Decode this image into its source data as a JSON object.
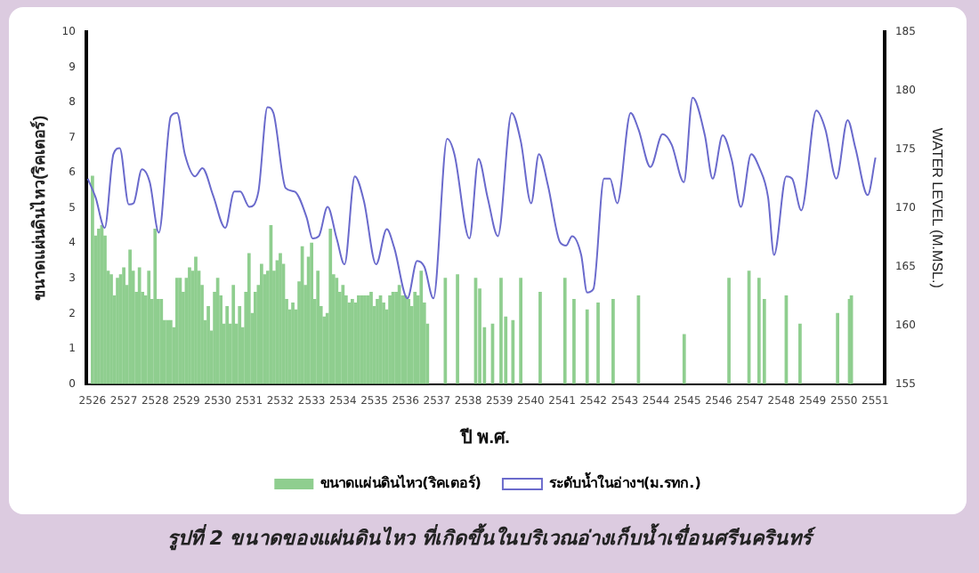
{
  "chart_data": {
    "type": "bar",
    "title": "รูปที่ 2  ขนาดของแผ่นดินไหว ที่เกิดขึ้นในบริเวณอ่างเก็บน้ำเขื่อนศรีนครินทร์",
    "xlabel": "ปี พ.ศ.",
    "ylabel": "ขนาดแผ่นดินไหว(ริคเตอร์)",
    "y2label": "WATER LEVEL (M.MSL.)",
    "xlim": [
      2525.8,
      2551.3
    ],
    "xticks": [
      2526,
      2527,
      2528,
      2529,
      2530,
      2531,
      2532,
      2533,
      2534,
      2535,
      2536,
      2537,
      2538,
      2539,
      2540,
      2541,
      2542,
      2543,
      2544,
      2545,
      2546,
      2547,
      2548,
      2549,
      2550,
      2551
    ],
    "ylim": [
      0,
      10
    ],
    "yticks": [
      0,
      1,
      2,
      3,
      4,
      5,
      6,
      7,
      8,
      9,
      10
    ],
    "y2lim": [
      155,
      185
    ],
    "y2ticks": [
      155,
      160,
      165,
      170,
      175,
      180,
      185
    ],
    "grid": false,
    "legend": "bottom",
    "series": [
      {
        "name": "ขนาดแผ่นดินไหว(ริคเตอร์)",
        "color": "#8fce8f",
        "x": [
          2526.0,
          2526.1,
          2526.2,
          2526.3,
          2526.4,
          2526.5,
          2526.6,
          2526.7,
          2526.8,
          2526.9,
          2527.0,
          2527.1,
          2527.2,
          2527.3,
          2527.4,
          2527.5,
          2527.6,
          2527.7,
          2527.8,
          2527.9,
          2528.0,
          2528.1,
          2528.2,
          2528.3,
          2528.4,
          2528.5,
          2528.6,
          2528.7,
          2528.8,
          2528.9,
          2529.0,
          2529.1,
          2529.2,
          2529.3,
          2529.4,
          2529.5,
          2529.6,
          2529.7,
          2529.8,
          2529.9,
          2530.0,
          2530.1,
          2530.2,
          2530.3,
          2530.4,
          2530.5,
          2530.6,
          2530.7,
          2530.8,
          2530.9,
          2531.0,
          2531.1,
          2531.2,
          2531.3,
          2531.4,
          2531.5,
          2531.6,
          2531.7,
          2531.8,
          2531.9,
          2532.0,
          2532.1,
          2532.2,
          2532.3,
          2532.4,
          2532.5,
          2532.6,
          2532.7,
          2532.8,
          2532.9,
          2533.0,
          2533.1,
          2533.2,
          2533.3,
          2533.4,
          2533.5,
          2533.6,
          2533.7,
          2533.8,
          2533.9,
          2534.0,
          2534.1,
          2534.2,
          2534.3,
          2534.4,
          2534.5,
          2534.6,
          2534.7,
          2534.8,
          2534.9,
          2535.0,
          2535.1,
          2535.2,
          2535.3,
          2535.4,
          2535.5,
          2535.6,
          2535.7,
          2535.8,
          2535.9,
          2536.0,
          2536.1,
          2536.2,
          2536.3,
          2536.4,
          2536.5,
          2536.6,
          2536.7,
          2537.27,
          2537.66,
          2538.24,
          2538.37,
          2538.52,
          2538.78,
          2539.05,
          2539.2,
          2539.43,
          2539.68,
          2540.3,
          2541.09,
          2541.38,
          2541.8,
          2542.15,
          2542.63,
          2543.44,
          2544.9,
          2546.33,
          2546.97,
          2547.29,
          2547.46,
          2548.16,
          2548.6,
          2549.8,
          2550.18,
          2550.24
        ],
        "values": [
          5.9,
          4.2,
          4.4,
          4.5,
          4.2,
          3.2,
          3.1,
          2.5,
          3.0,
          3.1,
          3.3,
          2.8,
          3.8,
          3.2,
          2.6,
          3.3,
          2.6,
          2.5,
          3.2,
          2.4,
          4.4,
          2.4,
          2.4,
          1.8,
          1.8,
          1.8,
          1.6,
          3.0,
          3.0,
          2.6,
          3.0,
          3.3,
          3.2,
          3.6,
          3.2,
          2.8,
          1.8,
          2.2,
          1.5,
          2.6,
          3.0,
          2.5,
          1.7,
          2.2,
          1.7,
          2.8,
          1.7,
          2.2,
          1.6,
          2.6,
          3.7,
          2.0,
          2.6,
          2.8,
          3.4,
          3.1,
          3.2,
          4.5,
          3.2,
          3.5,
          3.7,
          3.4,
          2.4,
          2.1,
          2.3,
          2.1,
          2.9,
          3.9,
          2.8,
          3.6,
          4.0,
          2.4,
          3.2,
          2.2,
          1.9,
          2.0,
          4.4,
          3.1,
          3.0,
          2.6,
          2.8,
          2.5,
          2.3,
          2.4,
          2.3,
          2.5,
          2.5,
          2.5,
          2.5,
          2.6,
          2.2,
          2.4,
          2.5,
          2.3,
          2.1,
          2.5,
          2.6,
          2.6,
          2.8,
          2.5,
          2.5,
          2.4,
          2.2,
          2.6,
          2.5,
          3.2,
          2.3,
          1.7,
          3.0,
          3.1,
          3.0,
          2.7,
          1.6,
          1.7,
          3.0,
          1.9,
          1.8,
          3.0,
          2.6,
          3.0,
          2.4,
          2.1,
          2.3,
          2.4,
          2.5,
          1.4,
          3.0,
          3.2,
          3.0,
          2.4,
          2.5,
          1.7,
          2.0,
          2.4,
          2.5
        ]
      },
      {
        "name": "ระดับน้ำในอ่างฯ(ม.รทก.)",
        "type": "line",
        "axis": "y2",
        "color": "#6a6acc",
        "marker": "none",
        "line_style": "solid",
        "x": [
          2525.85,
          2526.1,
          2526.39,
          2526.67,
          2526.87,
          2527.16,
          2527.31,
          2527.58,
          2527.83,
          2528.12,
          2528.5,
          2528.7,
          2528.95,
          2529.28,
          2529.51,
          2529.85,
          2530.24,
          2530.53,
          2530.72,
          2531.01,
          2531.3,
          2531.59,
          2531.78,
          2532.17,
          2532.46,
          2532.84,
          2533.03,
          2533.23,
          2533.51,
          2533.8,
          2534.05,
          2534.38,
          2534.67,
          2535.06,
          2535.4,
          2535.64,
          2536.06,
          2536.37,
          2536.6,
          2536.89,
          2537.33,
          2537.56,
          2538.04,
          2538.33,
          2538.62,
          2538.95,
          2539.39,
          2539.68,
          2540.01,
          2540.26,
          2540.55,
          2540.93,
          2541.13,
          2541.32,
          2541.61,
          2541.8,
          2542.0,
          2542.34,
          2542.53,
          2542.76,
          2543.19,
          2543.44,
          2543.82,
          2544.21,
          2544.5,
          2544.89,
          2545.17,
          2545.56,
          2545.81,
          2546.13,
          2546.42,
          2546.71,
          2547.04,
          2547.29,
          2547.58,
          2547.77,
          2548.16,
          2548.35,
          2548.64,
          2549.12,
          2549.41,
          2549.76,
          2550.12,
          2550.37,
          2550.76,
          2551.01
        ],
        "values": [
          172.5,
          170.9,
          168.3,
          174.6,
          175.1,
          170.3,
          170.4,
          173.3,
          172.2,
          167.9,
          177.8,
          178.1,
          174.6,
          172.7,
          173.4,
          171.1,
          168.3,
          171.4,
          171.4,
          170.1,
          171.4,
          178.6,
          178.1,
          171.7,
          171.4,
          169.2,
          167.4,
          167.6,
          170.1,
          167.4,
          165.2,
          172.7,
          170.6,
          165.2,
          168.2,
          166.6,
          162.3,
          165.5,
          165.0,
          162.3,
          175.9,
          174.6,
          167.4,
          174.2,
          170.9,
          167.6,
          178.1,
          175.7,
          170.4,
          174.6,
          171.9,
          167.1,
          166.8,
          167.6,
          166.0,
          162.8,
          163.1,
          172.5,
          172.5,
          170.4,
          178.1,
          176.7,
          173.5,
          176.3,
          175.4,
          172.2,
          179.4,
          176.2,
          172.5,
          176.2,
          174.1,
          170.1,
          174.6,
          173.5,
          170.9,
          166.0,
          172.7,
          172.5,
          169.8,
          178.3,
          176.7,
          172.5,
          177.5,
          175.1,
          171.1,
          174.3
        ]
      }
    ]
  }
}
